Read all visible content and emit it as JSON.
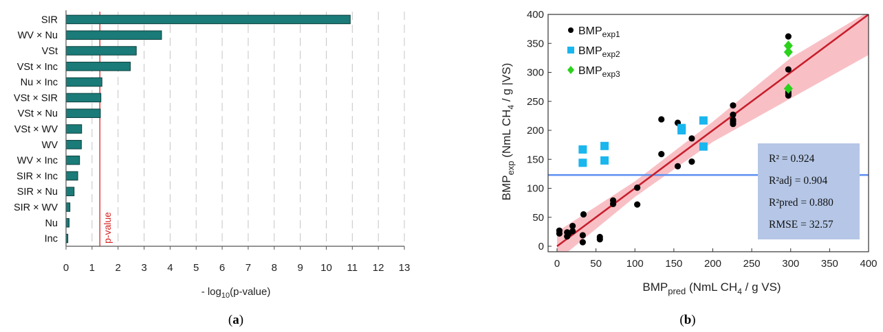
{
  "panel_a": {
    "caption_prefix": "(",
    "caption_letter": "a",
    "caption_suffix": ")"
  },
  "panel_b": {
    "caption_prefix": "(",
    "caption_letter": "b",
    "caption_suffix": ")"
  },
  "chart_data": [
    {
      "type": "bar",
      "orientation": "horizontal",
      "categories": [
        "SIR",
        "WV × Nu",
        "VSt",
        "VSt × Inc",
        "Nu × Inc",
        "VSt × SIR",
        "VSt × Nu",
        "VSt × WV",
        "WV",
        "WV × Inc",
        "SIR × Inc",
        "SIR × Nu",
        "SIR × WV",
        "Nu",
        "Inc"
      ],
      "values": [
        10.92,
        3.67,
        2.7,
        2.47,
        1.38,
        1.34,
        1.32,
        0.6,
        0.59,
        0.52,
        0.45,
        0.31,
        0.15,
        0.12,
        0.07
      ],
      "xlabel_prefix": "- log",
      "xlabel_sub": "10",
      "xlabel_suffix": "(p-value)",
      "xlim": [
        0,
        13
      ],
      "xticks": [
        "0",
        "1",
        "2",
        "3",
        "4",
        "5",
        "6",
        "7",
        "8",
        "9",
        "10",
        "11",
        "12",
        "13"
      ],
      "grid": "vertical dashed",
      "reference_line": {
        "x": 1.3,
        "label": "p-value",
        "color": "#d62020"
      },
      "colors": {
        "bar": "#1a7b78",
        "bar_edge": "#0b3e3c"
      }
    },
    {
      "type": "scatter",
      "xlabel": {
        "main": "BMP",
        "sub": "pred",
        "rest_a": " (NmL CH",
        "sub2": "4",
        "rest_b": " / g VS)"
      },
      "ylabel": {
        "main": "BMP",
        "sub": "exp",
        "rest_a": " (NmL CH",
        "sub2": "4",
        "rest_b": " / g |VS)"
      },
      "xlim": [
        0,
        400
      ],
      "ylim": [
        0,
        400
      ],
      "xticks": [
        "0",
        "50",
        "100",
        "150",
        "200",
        "250",
        "300",
        "350",
        "400"
      ],
      "yticks": [
        "0",
        "50",
        "100",
        "150",
        "200",
        "250",
        "300",
        "350",
        "400"
      ],
      "series": [
        {
          "name": "BMP",
          "name_sub": "exp1",
          "marker": "circle",
          "color": "#000000",
          "x": [
            3,
            3,
            13,
            13,
            15,
            20,
            20,
            33,
            33,
            34,
            55,
            55,
            72,
            72,
            103,
            103,
            134,
            134,
            155,
            155,
            173,
            173,
            226,
            226,
            226,
            226,
            226,
            297,
            297,
            297,
            297,
            297
          ],
          "y": [
            22,
            27,
            24,
            17,
            22,
            26,
            35,
            19,
            7,
            55,
            12,
            16,
            73,
            79,
            101,
            72,
            219,
            159,
            213,
            138,
            186,
            146,
            243,
            227,
            218,
            215,
            211,
            362,
            305,
            266,
            263,
            260
          ]
        },
        {
          "name": "BMP",
          "name_sub": "exp2",
          "marker": "square",
          "color": "#1ab6ee",
          "x": [
            33,
            33,
            61,
            61,
            160,
            160,
            188,
            188
          ],
          "y": [
            167,
            144,
            173,
            148,
            204,
            200,
            217,
            172
          ]
        },
        {
          "name": "BMP",
          "name_sub": "exp3",
          "marker": "diamond",
          "color": "#2bd21c",
          "x": [
            297,
            297,
            297
          ],
          "y": [
            346,
            335,
            272
          ]
        }
      ],
      "fit_line": {
        "x": [
          0,
          400
        ],
        "y": [
          0,
          400
        ],
        "color": "#c81e2d"
      },
      "confidence_band": {
        "x": [
          0,
          100,
          200,
          300,
          400
        ],
        "lower": [
          -25,
          85,
          180,
          255,
          330
        ],
        "upper": [
          25,
          112,
          215,
          325,
          405
        ],
        "color": "#f7b9bf"
      },
      "mean_line": {
        "y": 123,
        "color": "#5b8ff0"
      },
      "legend_position": "top-left",
      "stats": [
        "R² = 0.924",
        "R²adj = 0.904",
        "R²pred = 0.880",
        "RMSE = 32.57"
      ],
      "stats_box_color": "#b5c6e6"
    }
  ]
}
